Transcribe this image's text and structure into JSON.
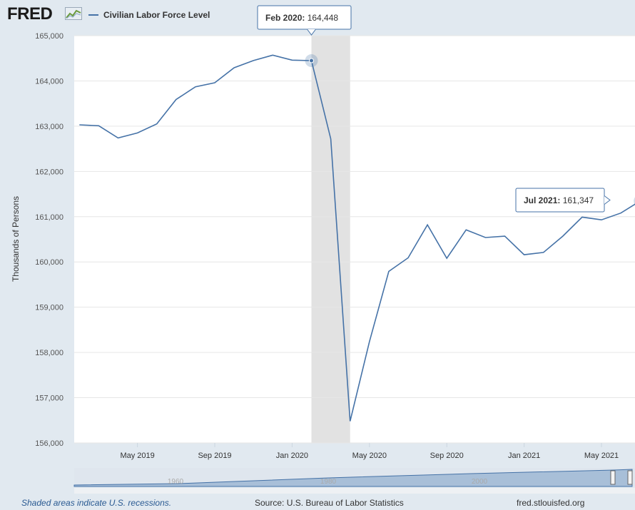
{
  "header": {
    "logo_text": "FRED",
    "logo_icon": "chart-line-icon",
    "legend_label": "Civilian Labor Force Level",
    "line_color": "#4572a7"
  },
  "chart_data": {
    "type": "line",
    "ylabel": "Thousands of Persons",
    "ylim": [
      156000,
      165000
    ],
    "y_ticks": [
      "156,000",
      "157,000",
      "158,000",
      "159,000",
      "160,000",
      "161,000",
      "162,000",
      "163,000",
      "164,000",
      "165,000"
    ],
    "x_ticks": [
      "May 2019",
      "Sep 2019",
      "Jan 2020",
      "May 2020",
      "Sep 2020",
      "Jan 2021",
      "May 2021"
    ],
    "recession": {
      "start": "2020-03",
      "end": "2020-04"
    },
    "grid": true,
    "series": [
      {
        "name": "Civilian Labor Force Level",
        "x": [
          "2019-02",
          "2019-03",
          "2019-04",
          "2019-05",
          "2019-06",
          "2019-07",
          "2019-08",
          "2019-09",
          "2019-10",
          "2019-11",
          "2019-12",
          "2020-01",
          "2020-02",
          "2020-03",
          "2020-04",
          "2020-05",
          "2020-06",
          "2020-07",
          "2020-08",
          "2020-09",
          "2020-10",
          "2020-11",
          "2020-12",
          "2021-01",
          "2021-02",
          "2021-03",
          "2021-04",
          "2021-05",
          "2021-06",
          "2021-07"
        ],
        "values": [
          163030,
          163010,
          162740,
          162850,
          163050,
          163590,
          163870,
          163960,
          164290,
          164450,
          164570,
          164460,
          164448,
          162720,
          156480,
          158240,
          159790,
          160090,
          160820,
          160080,
          160710,
          160540,
          160570,
          160160,
          160210,
          160570,
          160990,
          160930,
          161080,
          161347
        ]
      }
    ],
    "tooltips": [
      {
        "date_label": "Feb 2020:",
        "value_label": "164,448"
      },
      {
        "date_label": "Jul 2021:",
        "value_label": "161,347"
      }
    ],
    "navigator_labels": [
      "1960",
      "1980",
      "2000"
    ]
  },
  "footer": {
    "recession_note": "Shaded areas indicate U.S. recessions.",
    "source": "Source: U.S. Bureau of Labor Statistics",
    "site": "fred.stlouisfed.org"
  }
}
